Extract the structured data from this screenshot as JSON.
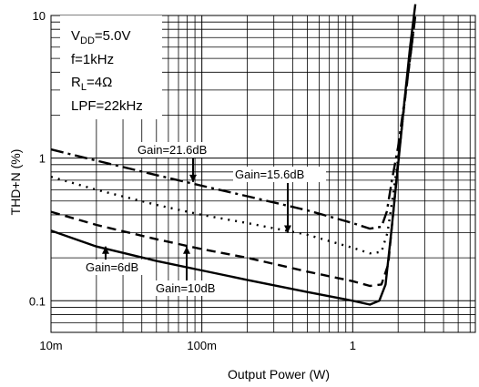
{
  "chart_data": {
    "type": "line",
    "xlabel": "Output Power (W)",
    "ylabel": "THD+N (%)",
    "x_scale": "log",
    "y_scale": "log",
    "xlim": [
      0.01,
      6.5
    ],
    "ylim": [
      0.06,
      10
    ],
    "grid": true,
    "x_ticks": [
      {
        "value": 0.01,
        "label": "10m"
      },
      {
        "value": 0.1,
        "label": "100m"
      },
      {
        "value": 1,
        "label": "1"
      }
    ],
    "y_ticks": [
      {
        "value": 10,
        "label": "10"
      },
      {
        "value": 1,
        "label": "1"
      },
      {
        "value": 0.1,
        "label": "0.1"
      }
    ],
    "conditions": {
      "line1_main": "V",
      "line1_sub": "DD",
      "line1_rest": "=5.0V",
      "line2": "f=1kHz",
      "line3_main": "R",
      "line3_sub": "L",
      "line3_rest": "=4Ω",
      "line4": "LPF=22kHz"
    },
    "series": [
      {
        "label": "Gain=6dB",
        "style": "solid",
        "points": [
          [
            0.01,
            0.31
          ],
          [
            0.02,
            0.24
          ],
          [
            0.05,
            0.19
          ],
          [
            0.1,
            0.163
          ],
          [
            0.2,
            0.14
          ],
          [
            0.5,
            0.115
          ],
          [
            1.0,
            0.1
          ],
          [
            1.3,
            0.094
          ],
          [
            1.5,
            0.1
          ],
          [
            1.65,
            0.13
          ],
          [
            1.8,
            0.3
          ],
          [
            2.0,
            0.9
          ],
          [
            2.2,
            2.5
          ],
          [
            2.4,
            6.0
          ],
          [
            2.6,
            12.0
          ]
        ]
      },
      {
        "label": "Gain=10dB",
        "style": "dashed",
        "points": [
          [
            0.01,
            0.42
          ],
          [
            0.02,
            0.34
          ],
          [
            0.05,
            0.27
          ],
          [
            0.1,
            0.23
          ],
          [
            0.2,
            0.2
          ],
          [
            0.5,
            0.16
          ],
          [
            1.0,
            0.137
          ],
          [
            1.3,
            0.127
          ],
          [
            1.55,
            0.13
          ],
          [
            1.72,
            0.18
          ],
          [
            1.85,
            0.4
          ],
          [
            2.0,
            0.95
          ],
          [
            2.2,
            2.4
          ],
          [
            2.4,
            5.0
          ],
          [
            2.6,
            10.0
          ]
        ]
      },
      {
        "label": "Gain=15.6dB",
        "style": "dotted",
        "points": [
          [
            0.01,
            0.74
          ],
          [
            0.02,
            0.6
          ],
          [
            0.05,
            0.47
          ],
          [
            0.1,
            0.4
          ],
          [
            0.2,
            0.35
          ],
          [
            0.5,
            0.29
          ],
          [
            1.0,
            0.235
          ],
          [
            1.3,
            0.215
          ],
          [
            1.55,
            0.22
          ],
          [
            1.7,
            0.3
          ],
          [
            1.85,
            0.55
          ],
          [
            2.0,
            1.0
          ],
          [
            2.2,
            2.4
          ],
          [
            2.4,
            5.0
          ],
          [
            2.6,
            10.0
          ]
        ]
      },
      {
        "label": "Gain=21.6dB",
        "style": "dashdot",
        "points": [
          [
            0.01,
            1.15
          ],
          [
            0.02,
            0.96
          ],
          [
            0.05,
            0.76
          ],
          [
            0.1,
            0.64
          ],
          [
            0.2,
            0.54
          ],
          [
            0.5,
            0.43
          ],
          [
            1.0,
            0.35
          ],
          [
            1.3,
            0.32
          ],
          [
            1.55,
            0.33
          ],
          [
            1.68,
            0.42
          ],
          [
            1.82,
            0.7
          ],
          [
            2.0,
            1.2
          ],
          [
            2.2,
            2.5
          ],
          [
            2.4,
            5.0
          ],
          [
            2.6,
            10.0
          ]
        ]
      }
    ],
    "annotations": [
      {
        "text": "Gain=21.6dB",
        "series": "Gain=21.6dB",
        "arrow_to": [
          0.09,
          0.68
        ]
      },
      {
        "text": "Gain=15.6dB",
        "series": "Gain=15.6dB",
        "arrow_to": [
          0.3,
          0.3
        ]
      },
      {
        "text": "Gain=6dB",
        "series": "Gain=6dB",
        "arrow_to": [
          0.023,
          0.24
        ]
      },
      {
        "text": "Gain=10dB",
        "series": "Gain=10dB",
        "arrow_to": [
          0.08,
          0.24
        ]
      }
    ]
  }
}
